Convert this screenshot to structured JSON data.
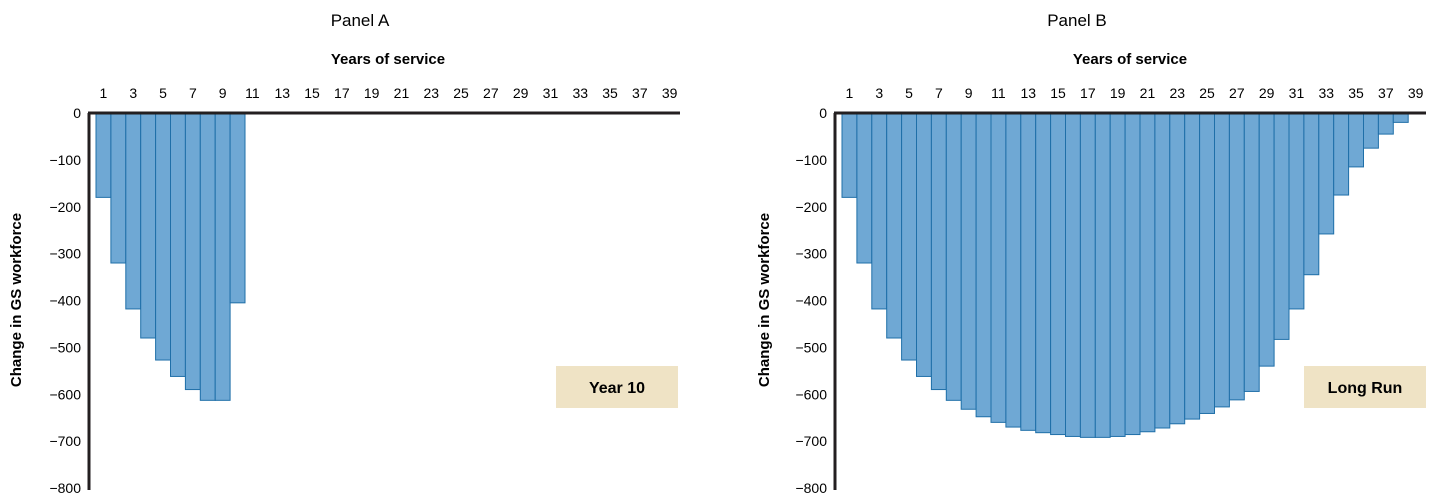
{
  "chart_data": [
    {
      "type": "bar",
      "title": "Panel A",
      "xlabel": "Years of service",
      "ylabel": "Change in GS workforce",
      "x_tick_labels": [
        "1",
        "3",
        "5",
        "7",
        "9",
        "11",
        "13",
        "15",
        "17",
        "19",
        "21",
        "23",
        "25",
        "27",
        "29",
        "31",
        "33",
        "35",
        "37",
        "39"
      ],
      "y_tick_labels": [
        "0",
        "−100",
        "−200",
        "−300",
        "−400",
        "−500",
        "−600",
        "−700",
        "−800"
      ],
      "ylim": [
        -800,
        0
      ],
      "xlim": [
        1,
        40
      ],
      "annotation": "Year 10",
      "categories": [
        1,
        2,
        3,
        4,
        5,
        6,
        7,
        8,
        9,
        10
      ],
      "values": [
        -180,
        -320,
        -418,
        -480,
        -527,
        -562,
        -590,
        -613,
        -613,
        -405
      ]
    },
    {
      "type": "bar",
      "title": "Panel B",
      "xlabel": "Years of service",
      "ylabel": "Change in GS workforce",
      "x_tick_labels": [
        "1",
        "3",
        "5",
        "7",
        "9",
        "11",
        "13",
        "15",
        "17",
        "19",
        "21",
        "23",
        "25",
        "27",
        "29",
        "31",
        "33",
        "35",
        "37",
        "39"
      ],
      "y_tick_labels": [
        "0",
        "−100",
        "−200",
        "−300",
        "−400",
        "−500",
        "−600",
        "−700",
        "−800"
      ],
      "ylim": [
        -800,
        0
      ],
      "xlim": [
        1,
        40
      ],
      "annotation": "Long Run",
      "categories": [
        1,
        2,
        3,
        4,
        5,
        6,
        7,
        8,
        9,
        10,
        11,
        12,
        13,
        14,
        15,
        16,
        17,
        18,
        19,
        20,
        21,
        22,
        23,
        24,
        25,
        26,
        27,
        28,
        29,
        30,
        31,
        32,
        33,
        34,
        35,
        36,
        37,
        38,
        39,
        40
      ],
      "values": [
        -180,
        -320,
        -418,
        -480,
        -527,
        -562,
        -590,
        -613,
        -632,
        -648,
        -660,
        -670,
        -677,
        -682,
        -686,
        -690,
        -692,
        -692,
        -690,
        -686,
        -680,
        -672,
        -663,
        -653,
        -641,
        -627,
        -612,
        -594,
        -540,
        -483,
        -418,
        -345,
        -258,
        -175,
        -115,
        -75,
        -45,
        -20,
        0,
        0
      ]
    }
  ],
  "colors": {
    "bar_fill": "#6fa8d4",
    "bar_stroke": "#1f6fa8",
    "axis": "#231f20",
    "badge_bg": "#efe3c5"
  }
}
